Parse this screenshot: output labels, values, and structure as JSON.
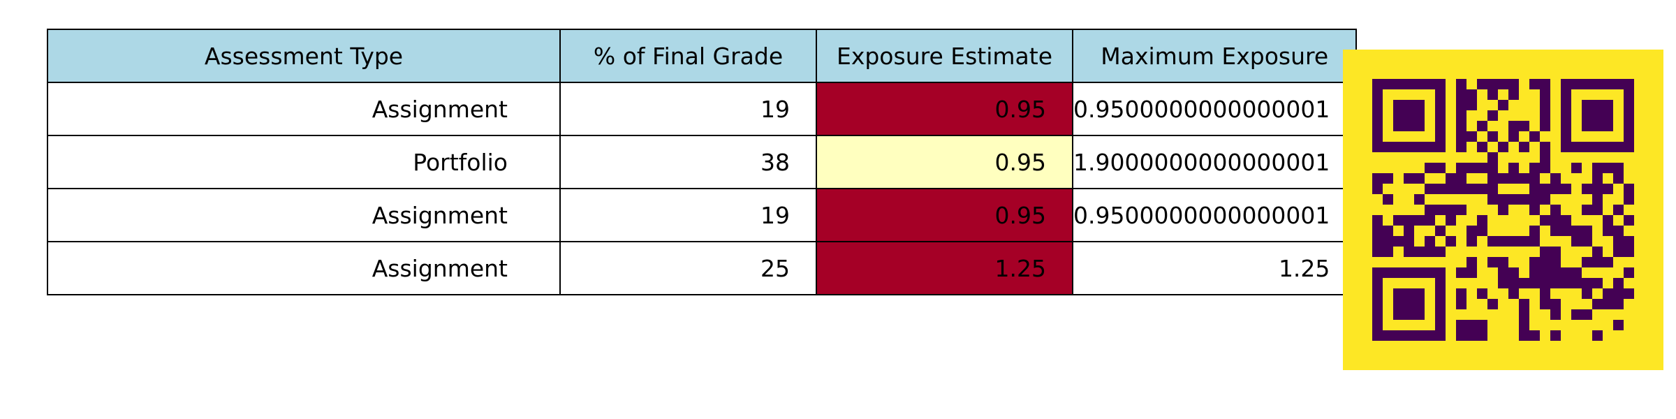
{
  "chart_data": {
    "type": "table",
    "columns": [
      "Assessment Type",
      "% of Final Grade",
      "Exposure Estimate",
      "Maximum Exposure"
    ],
    "rows": [
      [
        "Assignment",
        "19",
        "0.95",
        "0.9500000000000001"
      ],
      [
        "Portfolio",
        "38",
        "0.95",
        "1.9000000000000001"
      ],
      [
        "Assignment",
        "19",
        "0.95",
        "0.9500000000000001"
      ],
      [
        "Assignment",
        "25",
        "1.25",
        "1.25"
      ]
    ],
    "header_color": "#add8e6",
    "exposure_cell_colors": [
      "#a50026",
      "#ffffbf",
      "#a50026",
      "#a50026"
    ]
  },
  "qr": {
    "background": "#fde725",
    "foreground": "#440154"
  }
}
